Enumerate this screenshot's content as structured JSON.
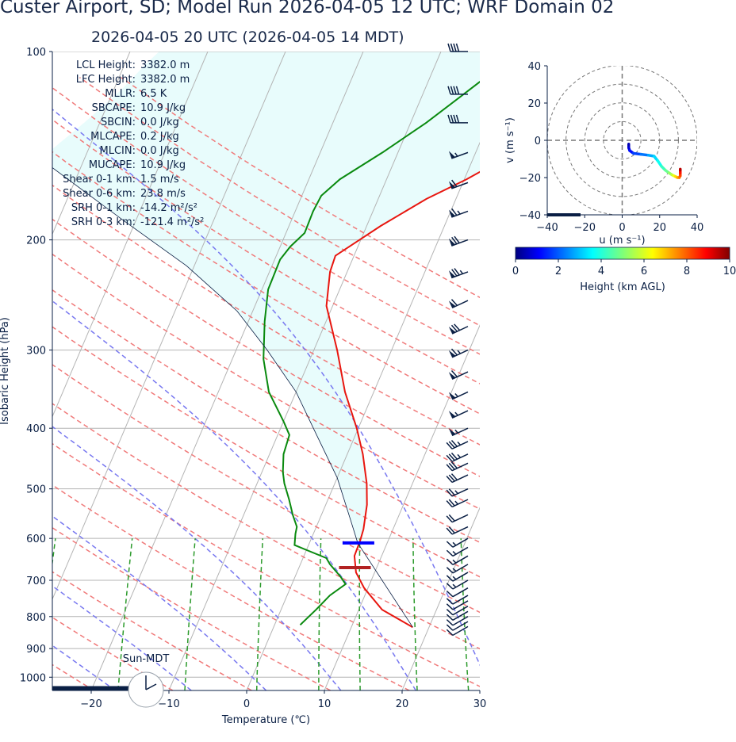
{
  "header": {
    "title": "Custer Airport, SD; Model Run 2026-04-05 12 UTC; WRF Domain 02",
    "subtitle": "2026-04-05 20 UTC  (2026-04-05 14 MDT)"
  },
  "stats": [
    {
      "label": "LCL Height:",
      "value": "3382.0 m"
    },
    {
      "label": "LFC Height:",
      "value": "3382.0 m"
    },
    {
      "label": "MLLR:",
      "value": "6.5 K"
    },
    {
      "label": "SBCAPE:",
      "value": "10.9 J/kg"
    },
    {
      "label": "SBCIN:",
      "value": "0.0 J/kg"
    },
    {
      "label": "MLCAPE:",
      "value": "0.2 J/kg"
    },
    {
      "label": "MLCIN:",
      "value": "0.0 J/kg"
    },
    {
      "label": "MUCAPE:",
      "value": "10.9 J/kg"
    },
    {
      "label": "Shear 0-1 km:",
      "value": "1.5 m/s"
    },
    {
      "label": "Shear 0-6 km:",
      "value": "23.8 m/s"
    },
    {
      "label": "SRH 0-1 km:",
      "value": "-14.2 m²/s²"
    },
    {
      "label": "SRH 0-3 km:",
      "value": "-121.4 m²/s²"
    }
  ],
  "clock_label": "Sun-MDT",
  "chart_data": [
    {
      "type": "line",
      "chart": "skew-T log-p",
      "xlabel": "Temperature (℃)",
      "ylabel": "Isobaric Height (hPa)",
      "xlim": [
        -25,
        30
      ],
      "ylim": [
        1050,
        100
      ],
      "y_scale": "log",
      "skew": 35,
      "xticks": [
        -20,
        -10,
        0,
        10,
        20,
        30
      ],
      "yticks": [
        100,
        200,
        300,
        400,
        500,
        600,
        700,
        800,
        900,
        1000
      ],
      "grid": true,
      "series": [
        {
          "role": "temperature",
          "color": "#e8160f",
          "points": [
            [
              17.9,
              832
            ],
            [
              13,
              780
            ],
            [
              9.5,
              720
            ],
            [
              7.6,
              680
            ],
            [
              6.5,
              640
            ],
            [
              6.4,
              605
            ],
            [
              6.2,
              580
            ],
            [
              5.3,
              530
            ],
            [
              4.1,
              490
            ],
            [
              2,
              440
            ],
            [
              -0.2,
              400
            ],
            [
              -3.7,
              350
            ],
            [
              -7,
              300
            ],
            [
              -10.8,
              255
            ],
            [
              -12.2,
              225
            ],
            [
              -12.4,
              212
            ],
            [
              -8.2,
              190
            ],
            [
              -3.8,
              172
            ],
            [
              0.3,
              160
            ],
            [
              5,
              145
            ],
            [
              8,
              130
            ],
            [
              11,
              115
            ],
            [
              13,
              103
            ],
            [
              14,
              99
            ]
          ]
        },
        {
          "role": "dewpoint",
          "color": "#0a8a0f",
          "points": [
            [
              3.3,
              825
            ],
            [
              4.5,
              780
            ],
            [
              5.5,
              740
            ],
            [
              6.9,
              710
            ],
            [
              5.8,
              690
            ],
            [
              3.8,
              660
            ],
            [
              3,
              645
            ],
            [
              -1.8,
              615
            ],
            [
              -2.3,
              590
            ],
            [
              -2.5,
              575
            ],
            [
              -3.7,
              550
            ],
            [
              -5,
              520
            ],
            [
              -6.5,
              490
            ],
            [
              -7.3,
              470
            ],
            [
              -8.2,
              440
            ],
            [
              -8.5,
              410
            ],
            [
              -10,
              390
            ],
            [
              -13.5,
              350
            ],
            [
              -16,
              310
            ],
            [
              -17.9,
              270
            ],
            [
              -19.2,
              240
            ],
            [
              -19.3,
              215
            ],
            [
              -18.7,
              205
            ],
            [
              -17.6,
              195
            ],
            [
              -17.7,
              180
            ],
            [
              -17.5,
              170
            ],
            [
              -16,
              160
            ],
            [
              -12,
              145
            ],
            [
              -8,
              130
            ],
            [
              -5,
              118
            ],
            [
              -2,
              107
            ],
            [
              0,
              101
            ]
          ]
        },
        {
          "role": "parcel",
          "color": "#0a1f44",
          "points": [
            [
              17.9,
              832
            ],
            [
              6.2,
              610
            ],
            [
              4,
              560
            ],
            [
              0,
              480
            ],
            [
              -5,
              410
            ],
            [
              -10,
              350
            ],
            [
              -16,
              300
            ],
            [
              -22,
              260
            ],
            [
              -31,
              220
            ],
            [
              -42,
              185
            ],
            [
              -55,
              150
            ],
            [
              -70,
              120
            ],
            [
              -83,
              100
            ]
          ]
        }
      ],
      "reference_lines": {
        "isotherm_step_c": 10,
        "dry_adiabats_theta_k": [
          250,
          260,
          270,
          280,
          290,
          300,
          310,
          320,
          330,
          340,
          350,
          360,
          370,
          380,
          390,
          400,
          410,
          420
        ],
        "moist_adiabats_theta_w_c": [
          -30,
          -20,
          -10,
          0,
          10,
          20,
          30
        ],
        "mixing_ratio_g_per_kg": [
          0.4,
          1,
          2,
          4,
          7,
          10,
          16,
          24,
          32
        ]
      },
      "cape_shading_hpa": [
        610,
        100
      ],
      "markers": [
        {
          "name": "LFC",
          "p_hpa": 610,
          "t_c": 6.5,
          "color": "#0000ff"
        },
        {
          "name": "LCL",
          "p_hpa": 668,
          "t_c": 7.4,
          "color": "#b22222"
        }
      ],
      "wind_barbs": [
        {
          "p": 830,
          "speed_kt": 10,
          "dir_deg": 300
        },
        {
          "p": 815,
          "speed_kt": 10,
          "dir_deg": 300
        },
        {
          "p": 800,
          "speed_kt": 10,
          "dir_deg": 300
        },
        {
          "p": 785,
          "speed_kt": 10,
          "dir_deg": 300
        },
        {
          "p": 770,
          "speed_kt": 10,
          "dir_deg": 300
        },
        {
          "p": 755,
          "speed_kt": 10,
          "dir_deg": 300
        },
        {
          "p": 740,
          "speed_kt": 10,
          "dir_deg": 300
        },
        {
          "p": 720,
          "speed_kt": 10,
          "dir_deg": 300
        },
        {
          "p": 700,
          "speed_kt": 15,
          "dir_deg": 300
        },
        {
          "p": 680,
          "speed_kt": 15,
          "dir_deg": 300
        },
        {
          "p": 660,
          "speed_kt": 15,
          "dir_deg": 300
        },
        {
          "p": 640,
          "speed_kt": 15,
          "dir_deg": 300
        },
        {
          "p": 620,
          "speed_kt": 15,
          "dir_deg": 300
        },
        {
          "p": 600,
          "speed_kt": 15,
          "dir_deg": 300
        },
        {
          "p": 575,
          "speed_kt": 20,
          "dir_deg": 295
        },
        {
          "p": 550,
          "speed_kt": 20,
          "dir_deg": 295
        },
        {
          "p": 520,
          "speed_kt": 25,
          "dir_deg": 295
        },
        {
          "p": 500,
          "speed_kt": 25,
          "dir_deg": 295
        },
        {
          "p": 475,
          "speed_kt": 30,
          "dir_deg": 295
        },
        {
          "p": 455,
          "speed_kt": 30,
          "dir_deg": 295
        },
        {
          "p": 440,
          "speed_kt": 35,
          "dir_deg": 295
        },
        {
          "p": 420,
          "speed_kt": 35,
          "dir_deg": 295
        },
        {
          "p": 400,
          "speed_kt": 55,
          "dir_deg": 295
        },
        {
          "p": 375,
          "speed_kt": 55,
          "dir_deg": 295
        },
        {
          "p": 350,
          "speed_kt": 55,
          "dir_deg": 295
        },
        {
          "p": 325,
          "speed_kt": 60,
          "dir_deg": 295
        },
        {
          "p": 300,
          "speed_kt": 65,
          "dir_deg": 295
        },
        {
          "p": 275,
          "speed_kt": 70,
          "dir_deg": 295
        },
        {
          "p": 250,
          "speed_kt": 60,
          "dir_deg": 295
        },
        {
          "p": 225,
          "speed_kt": 75,
          "dir_deg": 290
        },
        {
          "p": 200,
          "speed_kt": 70,
          "dir_deg": 290
        },
        {
          "p": 180,
          "speed_kt": 65,
          "dir_deg": 290
        },
        {
          "p": 162,
          "speed_kt": 60,
          "dir_deg": 290
        },
        {
          "p": 145,
          "speed_kt": 55,
          "dir_deg": 290
        },
        {
          "p": 130,
          "speed_kt": 40,
          "dir_deg": 270
        },
        {
          "p": 117,
          "speed_kt": 40,
          "dir_deg": 270
        },
        {
          "p": 100,
          "speed_kt": 40,
          "dir_deg": 270
        }
      ]
    },
    {
      "type": "line",
      "chart": "hodograph",
      "xlabel": "u (m s⁻¹)",
      "ylabel": "v (m s⁻¹)",
      "xlim": [
        -40,
        40
      ],
      "ylim": [
        -40,
        40
      ],
      "xticks": [
        -40,
        -20,
        0,
        20,
        40
      ],
      "yticks": [
        -40,
        -20,
        0,
        20,
        40
      ],
      "ring_speeds": [
        10,
        20,
        30,
        40
      ],
      "points": [
        {
          "u": 3.5,
          "v": -2,
          "h": 0.3
        },
        {
          "u": 3.5,
          "v": -4,
          "h": 0.6
        },
        {
          "u": 4,
          "v": -5.5,
          "h": 1
        },
        {
          "u": 6,
          "v": -7,
          "h": 1.5
        },
        {
          "u": 10,
          "v": -7.5,
          "h": 2
        },
        {
          "u": 14,
          "v": -8,
          "h": 2.5
        },
        {
          "u": 17,
          "v": -8.5,
          "h": 3
        },
        {
          "u": 19,
          "v": -11,
          "h": 3.5
        },
        {
          "u": 21,
          "v": -14,
          "h": 4
        },
        {
          "u": 23,
          "v": -16,
          "h": 4.5
        },
        {
          "u": 25,
          "v": -17.5,
          "h": 5
        },
        {
          "u": 26.5,
          "v": -18.5,
          "h": 5.5
        },
        {
          "u": 27.5,
          "v": -19,
          "h": 6
        },
        {
          "u": 28.5,
          "v": -19.5,
          "h": 6.5
        },
        {
          "u": 29.5,
          "v": -20,
          "h": 7
        },
        {
          "u": 30.5,
          "v": -20,
          "h": 7.5
        },
        {
          "u": 31,
          "v": -19,
          "h": 8
        },
        {
          "u": 31,
          "v": -17.5,
          "h": 8.5
        },
        {
          "u": 31,
          "v": -16,
          "h": 9
        },
        {
          "u": 31,
          "v": -15.5,
          "h": 10
        }
      ]
    },
    {
      "type": "colorbar",
      "xlabel": "Height (km AGL)",
      "range": [
        0,
        10
      ],
      "ticks": [
        0,
        2,
        4,
        6,
        8,
        10
      ],
      "colormap": "jet"
    }
  ],
  "colors": {
    "temperature": "#e8160f",
    "dewpoint": "#0a8a0f",
    "parcel": "#0a1f44",
    "dry_adiabat": "#f07a7a",
    "moist_adiabat": "#7878f0",
    "mixing_ratio": "#2b9a2b",
    "isotherm": "#b4b4b4",
    "cape_fill": "#e8fcfc",
    "text": "#0a1f44"
  }
}
